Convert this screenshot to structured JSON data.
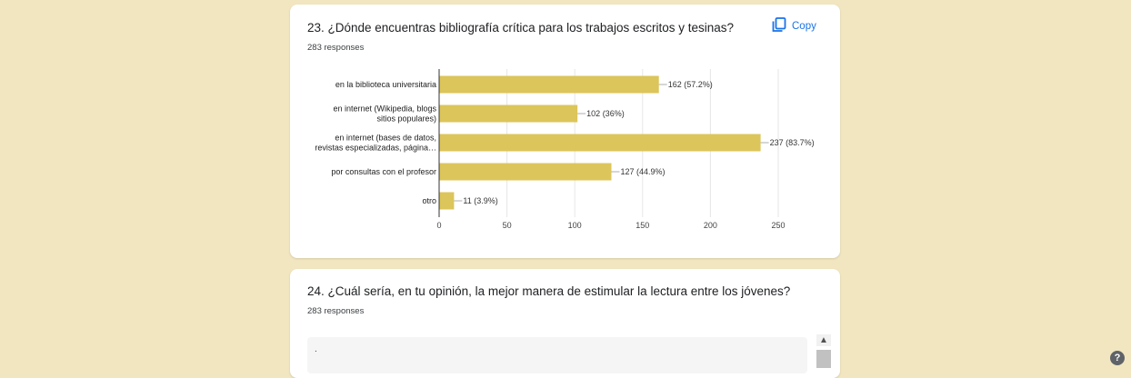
{
  "question23": {
    "title": "23. ¿Dónde encuentras bibliografía crítica para los trabajos escritos y tesinas?",
    "responses": "283 responses",
    "copy_label": "Copy"
  },
  "question24": {
    "title": "24. ¿Cuál sería, en tu opinión, la mejor manera de estimular la lectura entre los jóvenes?",
    "responses": "283 responses",
    "first_answer": "."
  },
  "colors": {
    "bar": "#dcc55a",
    "accent": "#1a73e8",
    "background": "#f1e6c0"
  },
  "icons": {
    "copy": "copy-icon",
    "help": "help-icon",
    "scroll_up": "chevron-up-icon"
  },
  "chart_data": {
    "type": "bar",
    "orientation": "horizontal",
    "categories": [
      [
        "en la biblioteca universitaria"
      ],
      [
        "en internet (Wikipedia, blogs",
        "sitios populares)"
      ],
      [
        "en internet (bases de datos,",
        "revistas especializadas, página…"
      ],
      [
        "por consultas con el profesor"
      ],
      [
        "otro"
      ]
    ],
    "values": [
      162,
      102,
      237,
      127,
      11
    ],
    "data_labels": [
      "162 (57.2%)",
      "102 (36%)",
      "237 (83.7%)",
      "127 (44.9%)",
      "11 (3.9%)"
    ],
    "x_ticks": [
      0,
      50,
      100,
      150,
      200,
      250
    ],
    "xlim": [
      0,
      250
    ],
    "grid": true,
    "legend": "none"
  }
}
